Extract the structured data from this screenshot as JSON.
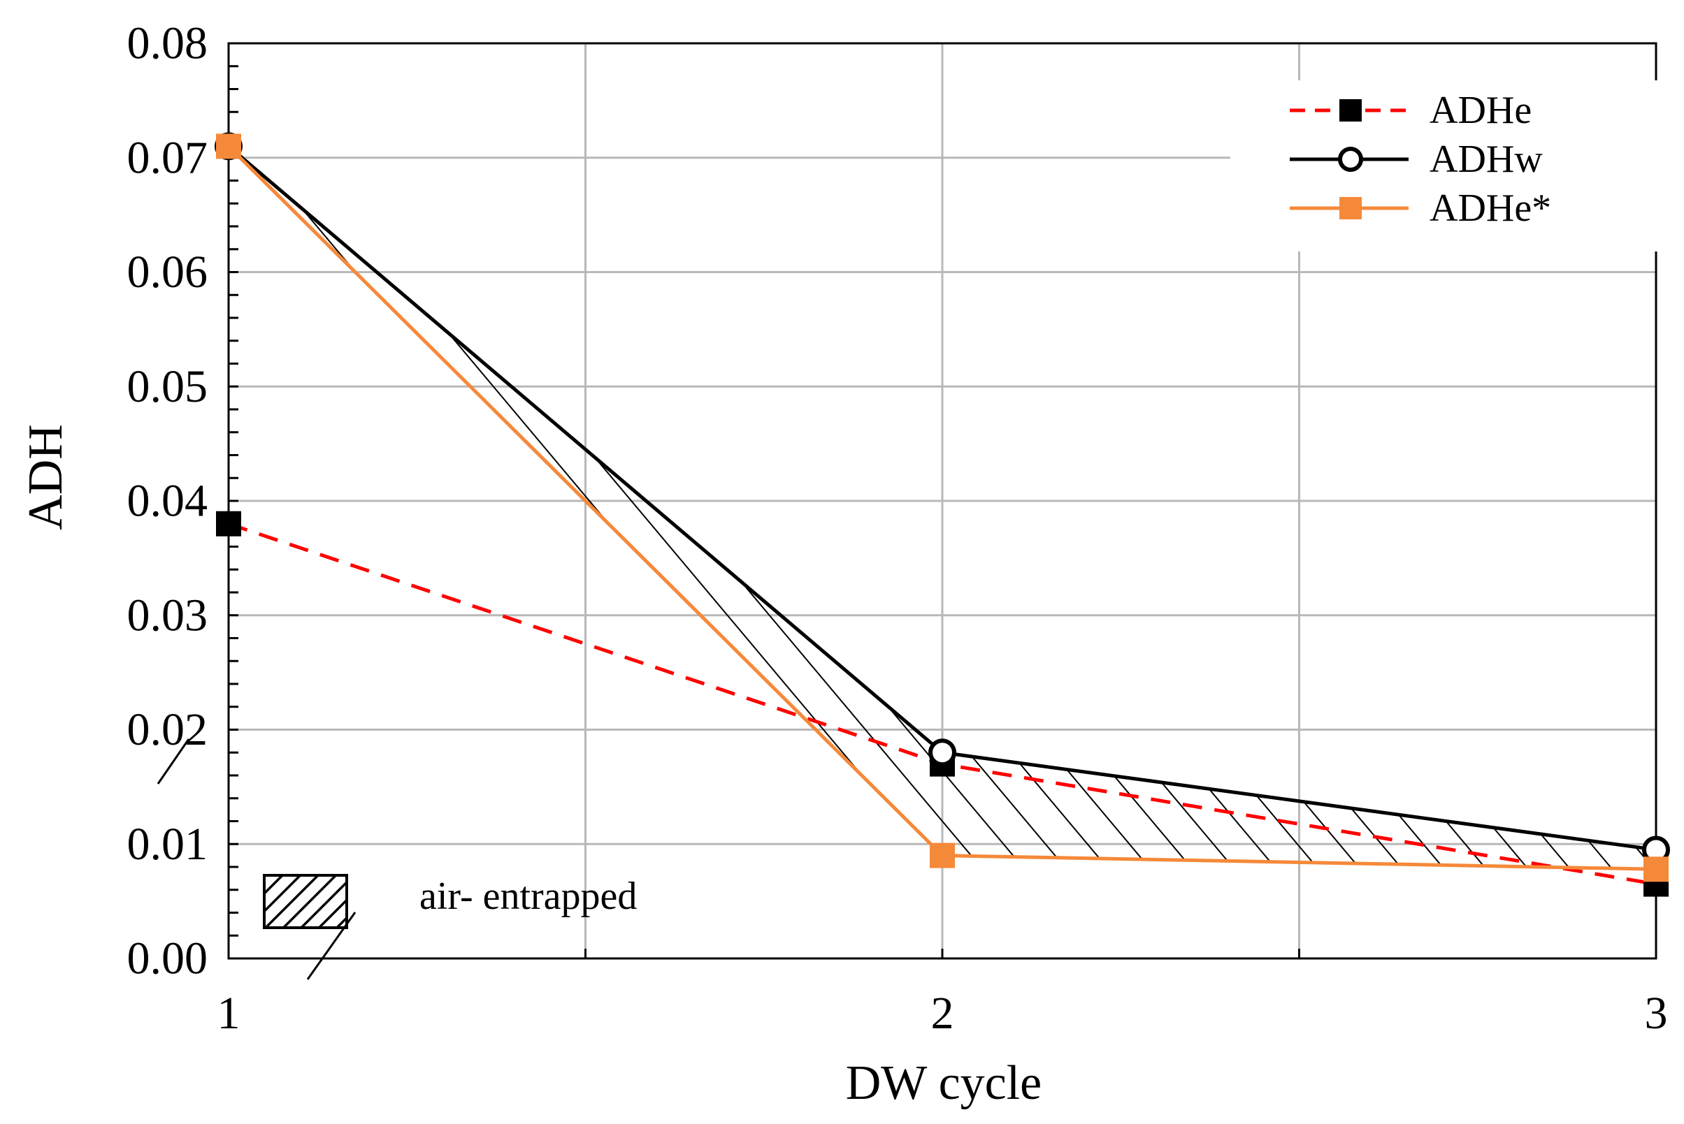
{
  "chart_data": {
    "type": "line",
    "title": "",
    "xlabel": "DW cycle",
    "ylabel": "ADH",
    "x": [
      1,
      2,
      3
    ],
    "x_tick_labels": [
      "1",
      "2",
      "3"
    ],
    "xlim": [
      1,
      3
    ],
    "ylim": [
      0,
      0.08
    ],
    "y_ticks": [
      0,
      0.01,
      0.02,
      0.03,
      0.04,
      0.05,
      0.06,
      0.07,
      0.08
    ],
    "y_tick_labels": [
      "0.00",
      "0.01",
      "0.02",
      "0.03",
      "0.04",
      "0.05",
      "0.06",
      "0.07",
      "0.08"
    ],
    "grid": true,
    "legend_position": "top-right",
    "series": [
      {
        "name": "ADHe",
        "key": "adhe",
        "values": [
          0.038,
          0.017,
          0.0065
        ],
        "color": "#ff0000",
        "marker_color": "#000000",
        "line_style": "dashed",
        "marker": "square"
      },
      {
        "name": "ADHw",
        "key": "adhw",
        "values": [
          0.071,
          0.018,
          0.0095
        ],
        "color": "#000000",
        "marker_color": "#ffffff",
        "line_style": "solid",
        "marker": "circle"
      },
      {
        "name": "ADHe*",
        "key": "adhes",
        "values": [
          0.071,
          0.009,
          0.0078
        ],
        "color": "#f5893a",
        "marker_color": "#f5893a",
        "line_style": "solid",
        "marker": "square"
      }
    ],
    "shaded_region": {
      "label": "air- entrapped",
      "between": [
        "ADHw",
        "ADHe*"
      ],
      "pattern": "diagonal-hatch"
    }
  }
}
